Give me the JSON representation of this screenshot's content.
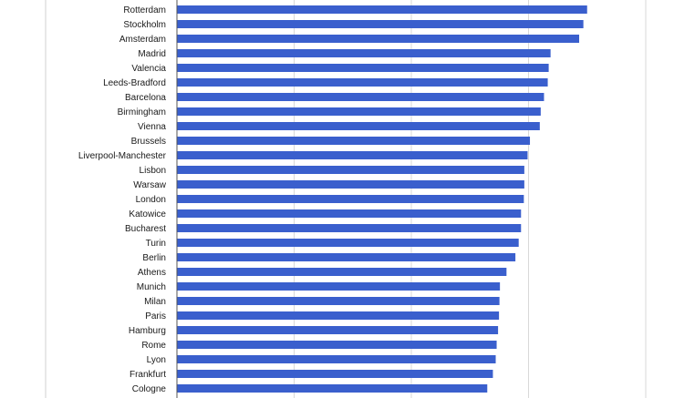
{
  "chart_data": {
    "type": "bar",
    "orientation": "horizontal",
    "categories": [
      "Rotterdam",
      "Stockholm",
      "Amsterdam",
      "Madrid",
      "Valencia",
      "Leeds-Bradford",
      "Barcelona",
      "Birmingham",
      "Vienna",
      "Brussels",
      "Liverpool-Manchester",
      "Lisbon",
      "Warsaw",
      "London",
      "Katowice",
      "Bucharest",
      "Turin",
      "Berlin",
      "Athens",
      "Munich",
      "Milan",
      "Paris",
      "Hamburg",
      "Rome",
      "Lyon",
      "Frankfurt",
      "Cologne"
    ],
    "values": [
      0.875,
      0.867,
      0.858,
      0.797,
      0.793,
      0.791,
      0.783,
      0.776,
      0.774,
      0.753,
      0.748,
      0.741,
      0.741,
      0.74,
      0.734,
      0.734,
      0.729,
      0.722,
      0.703,
      0.689,
      0.688,
      0.687,
      0.685,
      0.682,
      0.68,
      0.674,
      0.662
    ],
    "xlim": [
      0,
      1
    ],
    "x_gridlines": [
      0,
      0.25,
      0.5,
      0.75,
      1
    ],
    "grid": true,
    "bar_color": "#3a5fcd",
    "grid_color": "#d9d9d9",
    "axis_color": "#555555"
  }
}
